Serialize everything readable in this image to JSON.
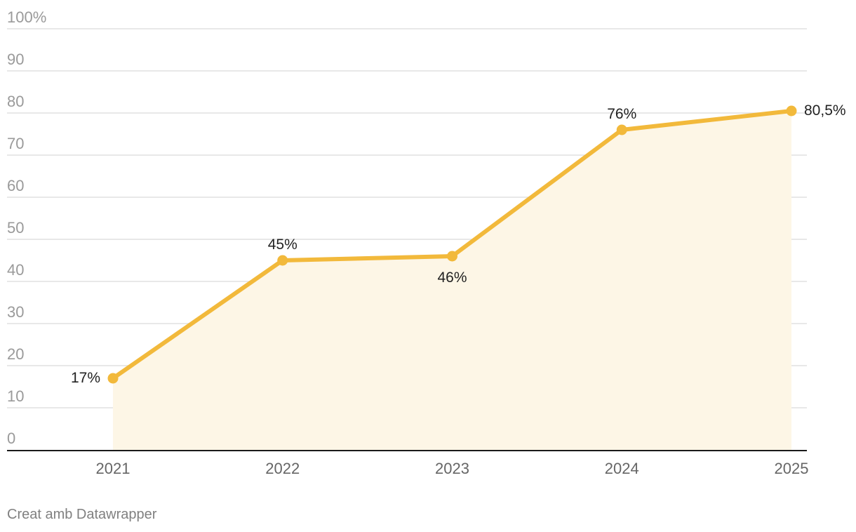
{
  "chart_data": {
    "type": "area",
    "categories": [
      "2021",
      "2022",
      "2023",
      "2024",
      "2025"
    ],
    "series": [
      {
        "values": [
          17,
          45,
          46,
          76,
          80.5
        ]
      }
    ],
    "data_labels": [
      "17%",
      "45%",
      "46%",
      "76%",
      "80,5%"
    ],
    "y_ticks": [
      {
        "value": 100,
        "label": "100%"
      },
      {
        "value": 90,
        "label": "90"
      },
      {
        "value": 80,
        "label": "80"
      },
      {
        "value": 70,
        "label": "70"
      },
      {
        "value": 60,
        "label": "60"
      },
      {
        "value": 50,
        "label": "50"
      },
      {
        "value": 40,
        "label": "40"
      },
      {
        "value": 30,
        "label": "30"
      },
      {
        "value": 20,
        "label": "20"
      },
      {
        "value": 10,
        "label": "10"
      },
      {
        "value": 0,
        "label": "0"
      }
    ],
    "ylim": [
      0,
      100
    ],
    "grid": true,
    "colors": {
      "line": "#f2b93b",
      "area": "#fdf6e6"
    }
  },
  "footer": {
    "credit": "Creat amb Datawrapper"
  }
}
